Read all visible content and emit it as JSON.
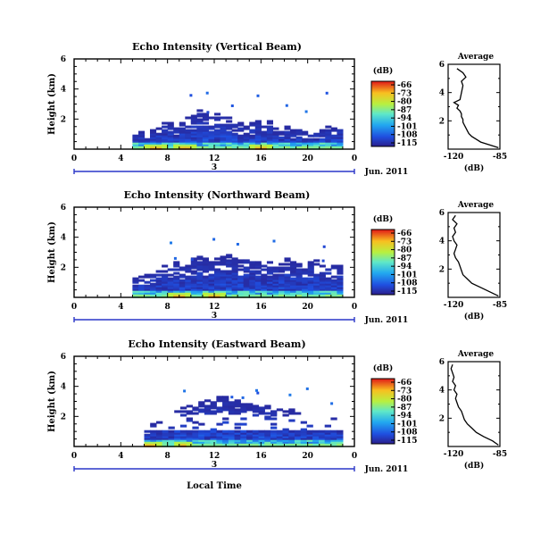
{
  "chart_data": [
    {
      "type": "heatmap",
      "title": "Echo Intensity (Vertical Beam)",
      "ylabel": "Height (km)",
      "ylim": [
        0,
        6
      ],
      "yticks": [
        "2",
        "4",
        "6"
      ],
      "xlim": [
        0,
        24
      ],
      "xticks": [
        "0",
        "4",
        "8",
        "12",
        "16",
        "20",
        "0"
      ],
      "day_label": "3",
      "date_label": "Jun. 2011",
      "colorbar": {
        "unit": "(dB)",
        "ticks": [
          "-66",
          "-73",
          "-80",
          "-87",
          "-94",
          "-101",
          "-108",
          "-115"
        ]
      },
      "echo": {
        "start_hour": 5.0,
        "end_hour": 23.0,
        "column_tops_km": [
          1.0,
          1.2,
          1.0,
          1.3,
          1.6,
          1.8,
          1.9,
          1.5,
          2.0,
          2.1,
          2.3,
          2.6,
          2.4,
          2.2,
          2.4,
          2.5,
          2.2,
          2.0,
          1.8,
          1.6,
          1.8,
          1.9,
          1.7,
          1.9,
          1.6,
          1.4,
          1.5,
          1.3,
          1.4,
          1.2,
          1.1,
          1.2,
          1.3,
          1.5,
          1.4,
          1.6
        ],
        "hot_hours": [
          9.5,
          7.0,
          16.0
        ]
      },
      "average": {
        "title": "Average",
        "xlabel": "(dB)",
        "xticks": [
          "-120",
          "-85"
        ],
        "yticks": [
          "2",
          "4",
          "6"
        ],
        "height_km": [
          0.1,
          0.3,
          0.5,
          0.7,
          0.9,
          1.1,
          1.3,
          1.5,
          1.7,
          1.9,
          2.1,
          2.3,
          2.5,
          2.7,
          2.9,
          3.1,
          3.3,
          3.5,
          4.5,
          4.8,
          5.1,
          5.4,
          5.7
        ],
        "intensity_db": [
          -86,
          -92,
          -98,
          -101,
          -104,
          -106,
          -107,
          -108,
          -109,
          -110,
          -110,
          -111,
          -111,
          -112,
          -114,
          -113,
          -116,
          -112,
          -110,
          -111,
          -108,
          -110,
          -114
        ]
      }
    },
    {
      "type": "heatmap",
      "title": "Echo Intensity (Northward Beam)",
      "ylabel": "Height (km)",
      "ylim": [
        0,
        6
      ],
      "yticks": [
        "2",
        "4",
        "6"
      ],
      "xlim": [
        0,
        24
      ],
      "xticks": [
        "0",
        "4",
        "8",
        "12",
        "16",
        "20",
        "0"
      ],
      "day_label": "3",
      "date_label": "Jun. 2011",
      "colorbar": {
        "unit": "(dB)",
        "ticks": [
          "-66",
          "-73",
          "-80",
          "-87",
          "-94",
          "-101",
          "-108",
          "-115"
        ]
      },
      "echo": {
        "start_hour": 5.0,
        "end_hour": 23.0,
        "column_tops_km": [
          1.3,
          1.4,
          1.5,
          1.7,
          1.9,
          2.1,
          2.2,
          2.4,
          2.2,
          2.5,
          2.6,
          2.8,
          2.6,
          2.5,
          2.7,
          2.8,
          2.9,
          2.7,
          2.6,
          2.8,
          2.5,
          2.4,
          2.3,
          2.5,
          2.2,
          2.3,
          2.6,
          2.4,
          2.3,
          2.1,
          2.4,
          2.5,
          2.2,
          2.3,
          2.2,
          2.1
        ],
        "hot_hours": [
          9.0,
          12.0
        ]
      },
      "average": {
        "title": "Average",
        "xlabel": "(dB)",
        "xticks": [
          "-120",
          "-85"
        ],
        "yticks": [
          "2",
          "4",
          "6"
        ],
        "height_km": [
          0.1,
          0.4,
          0.7,
          1.0,
          1.3,
          1.6,
          1.9,
          2.2,
          2.5,
          2.8,
          3.1,
          3.4,
          3.7,
          4.0,
          4.3,
          4.6,
          4.9,
          5.2,
          5.5,
          5.8
        ],
        "intensity_db": [
          -86,
          -92,
          -98,
          -104,
          -107,
          -110,
          -111,
          -112,
          -113,
          -115,
          -116,
          -115,
          -114,
          -116,
          -117,
          -115,
          -116,
          -114,
          -117,
          -115
        ]
      }
    },
    {
      "type": "heatmap",
      "title": "Echo Intensity (Eastward Beam)",
      "ylabel": "Height (km)",
      "ylim": [
        0,
        6
      ],
      "yticks": [
        "2",
        "4",
        "6"
      ],
      "xlim": [
        0,
        24
      ],
      "xticks": [
        "0",
        "4",
        "8",
        "12",
        "16",
        "20",
        "0"
      ],
      "day_label": "3",
      "date_label": "Jun. 2011",
      "xlabel": "Local Time",
      "colorbar": {
        "unit": "(dB)",
        "ticks": [
          "-66",
          "-73",
          "-80",
          "-87",
          "-94",
          "-101",
          "-108",
          "-115"
        ]
      },
      "echo": {
        "start_hour": 6.0,
        "end_hour": 23.0,
        "column_tops_km": [
          1.2,
          1.5,
          1.8,
          2.0,
          2.2,
          2.4,
          2.6,
          2.7,
          2.8,
          3.0,
          3.1,
          3.2,
          3.3,
          3.4,
          3.2,
          3.1,
          3.0,
          2.9,
          2.8,
          2.9,
          2.7,
          2.6,
          2.5,
          2.4,
          2.5,
          2.3,
          2.2,
          2.1,
          2.2,
          2.0,
          1.9,
          2.0,
          1.8
        ],
        "gap_km": [
          1.0,
          2.2
        ],
        "hot_hours": [
          9.5,
          6.5
        ]
      },
      "average": {
        "title": "Average",
        "xlabel": "(dB)",
        "xticks": [
          "-120",
          "-85"
        ],
        "yticks": [
          "2",
          "4",
          "6"
        ],
        "height_km": [
          0.1,
          0.4,
          0.7,
          1.0,
          1.3,
          1.6,
          1.9,
          2.2,
          2.5,
          2.8,
          3.1,
          3.4,
          3.7,
          4.0,
          4.3,
          4.6,
          4.9,
          5.2,
          5.5,
          5.8
        ],
        "intensity_db": [
          -86,
          -90,
          -96,
          -101,
          -104,
          -107,
          -109,
          -110,
          -111,
          -113,
          -114,
          -115,
          -114,
          -116,
          -115,
          -117,
          -116,
          -117,
          -118,
          -117
        ]
      }
    }
  ]
}
